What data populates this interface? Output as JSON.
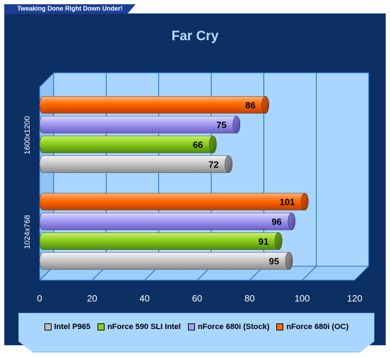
{
  "banner": {
    "tagline": "Tweaking Done Right Down Under!"
  },
  "colors": {
    "panel": "#0c2f64",
    "plot_wall": "#a9d6ff",
    "grid": "#1565c0",
    "title": "#b9ddff",
    "axis_text": "#ffffff",
    "series": [
      "#c0c0c0",
      "#8fce1e",
      "#a59cf2",
      "#ff6a00"
    ]
  },
  "chart_data": {
    "type": "bar",
    "orientation": "horizontal",
    "title": "Far Cry",
    "xlabel": "",
    "ylabel": "",
    "xlim": [
      0,
      120
    ],
    "x_ticks": [
      "0",
      "20",
      "40",
      "60",
      "80",
      "100",
      "120"
    ],
    "grid": true,
    "legend_position": "bottom",
    "categories": [
      "1600x1200",
      "1024x768"
    ],
    "series": [
      {
        "name": "Intel P965",
        "values": [
          72,
          95
        ]
      },
      {
        "name": "nForce 590 SLI Intel",
        "values": [
          66,
          91
        ]
      },
      {
        "name": "nForce 680i (Stock)",
        "values": [
          75,
          96
        ]
      },
      {
        "name": "nForce 680i (OC)",
        "values": [
          86,
          101
        ]
      }
    ]
  }
}
